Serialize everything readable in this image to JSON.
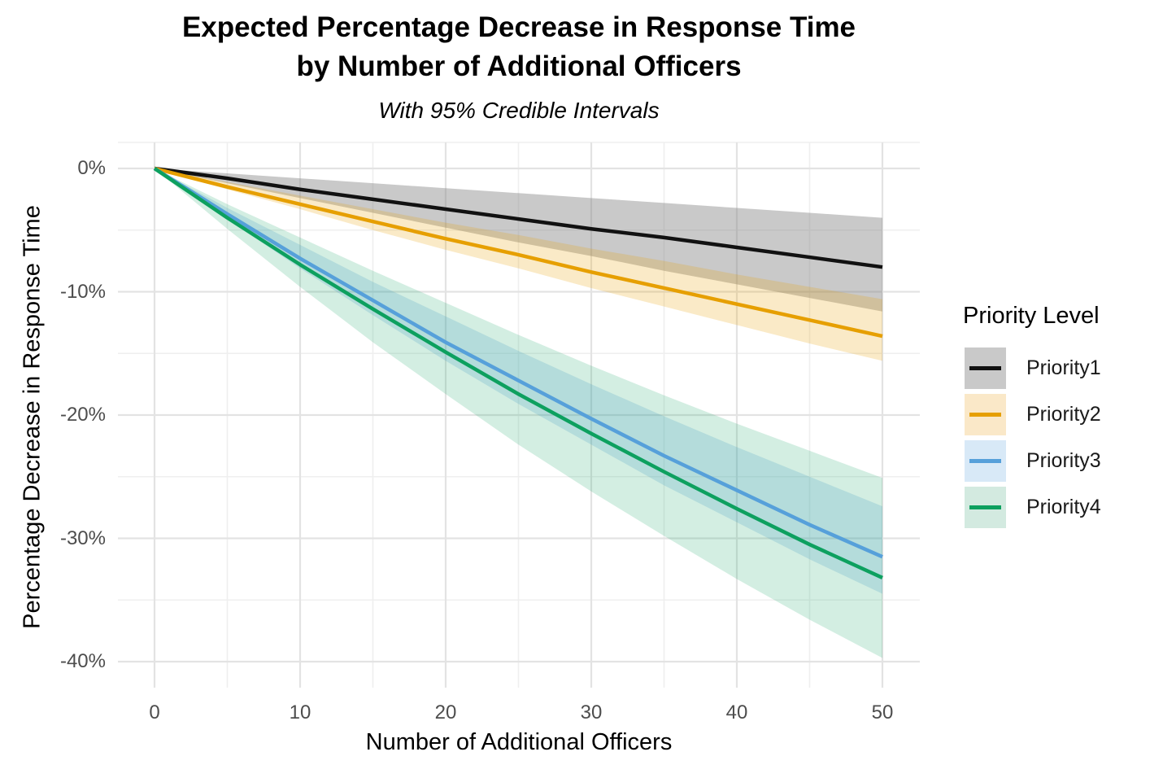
{
  "title": {
    "line1": "Expected Percentage Decrease in Response Time",
    "line2": "by Number of Additional Officers"
  },
  "subtitle": "With 95% Credible Intervals",
  "chart_data": {
    "type": "line",
    "title": "Expected Percentage Decrease in Response Time by Number of Additional Officers",
    "subtitle": "With 95% Credible Intervals",
    "xlabel": "Number of Additional Officers",
    "ylabel": "Percentage Decrease in Response Time",
    "legend_title": "Priority Level",
    "legend_position": "right",
    "grid": true,
    "ribbon_meaning": "95% credible interval",
    "x": [
      0,
      5,
      10,
      15,
      20,
      25,
      30,
      35,
      40,
      45,
      50
    ],
    "axes": {
      "x": {
        "min": 0,
        "max": 50,
        "major": [
          0,
          10,
          20,
          30,
          40,
          50
        ],
        "minor": [
          5,
          15,
          25,
          35,
          45
        ],
        "labels": [
          "0",
          "10",
          "20",
          "30",
          "40",
          "50"
        ]
      },
      "y": {
        "min": -40,
        "max": 0,
        "major": [
          0,
          -10,
          -20,
          -30,
          -40
        ],
        "minor": [
          -5,
          -15,
          -25,
          -35
        ],
        "labels": [
          "0%",
          "-10%",
          "-20%",
          "-30%",
          "-40%"
        ]
      }
    },
    "series": [
      {
        "name": "Priority1",
        "line_color": "#111111",
        "ribbon_fill": "rgba(127,127,127,0.42)",
        "key_fill": "#C9C9C9",
        "mean": [
          0,
          -0.8,
          -1.7,
          -2.5,
          -3.3,
          -4.1,
          -4.9,
          -5.6,
          -6.4,
          -7.2,
          -8.0
        ],
        "upper": [
          0,
          -0.4,
          -0.8,
          -1.2,
          -1.6,
          -2.0,
          -2.4,
          -2.8,
          -3.2,
          -3.6,
          -4.0
        ],
        "lower": [
          0,
          -1.2,
          -2.4,
          -3.6,
          -4.8,
          -6.0,
          -7.1,
          -8.3,
          -9.4,
          -10.5,
          -11.6
        ]
      },
      {
        "name": "Priority2",
        "line_color": "#E69F00",
        "ribbon_fill": "rgba(230,159,0,0.22)",
        "key_fill": "#FAE8C8",
        "mean": [
          0,
          -1.5,
          -2.9,
          -4.3,
          -5.7,
          -7.0,
          -8.4,
          -9.7,
          -11.0,
          -12.3,
          -13.6
        ],
        "upper": [
          0,
          -1.1,
          -2.2,
          -3.3,
          -4.4,
          -5.4,
          -6.5,
          -7.5,
          -8.6,
          -9.6,
          -10.6
        ],
        "lower": [
          0,
          -1.7,
          -3.3,
          -5.0,
          -6.6,
          -8.1,
          -9.7,
          -11.2,
          -12.7,
          -14.2,
          -15.6
        ]
      },
      {
        "name": "Priority3",
        "line_color": "#56A0DA",
        "ribbon_fill": "rgba(95,168,220,0.24)",
        "key_fill": "#D8E9F7",
        "mean": [
          0,
          -3.7,
          -7.3,
          -10.7,
          -14.1,
          -17.2,
          -20.3,
          -23.3,
          -26.1,
          -28.9,
          -31.5
        ],
        "upper": [
          0,
          -3.2,
          -6.2,
          -9.2,
          -12.0,
          -14.8,
          -17.5,
          -20.1,
          -22.6,
          -25.0,
          -27.4
        ],
        "lower": [
          0,
          -4.1,
          -8.1,
          -11.9,
          -15.6,
          -19.1,
          -22.4,
          -25.7,
          -28.7,
          -31.7,
          -34.5
        ]
      },
      {
        "name": "Priority4",
        "line_color": "#0DA05F",
        "ribbon_fill": "rgba(13,158,95,0.18)",
        "key_fill": "#D3EAE0",
        "mean": [
          0,
          -4.0,
          -7.8,
          -11.4,
          -14.9,
          -18.3,
          -21.5,
          -24.6,
          -27.6,
          -30.5,
          -33.2
        ],
        "upper": [
          0,
          -2.9,
          -5.6,
          -8.3,
          -10.9,
          -13.5,
          -16.0,
          -18.4,
          -20.7,
          -22.9,
          -25.1
        ],
        "lower": [
          0,
          -4.9,
          -9.6,
          -14.1,
          -18.3,
          -22.4,
          -26.2,
          -29.8,
          -33.3,
          -36.6,
          -39.7
        ]
      }
    ],
    "style": {
      "grid_major": "#e3e3e3",
      "grid_minor": "#efefef",
      "tick_label_color": "#4d4d4d",
      "background": "#ffffff"
    }
  }
}
